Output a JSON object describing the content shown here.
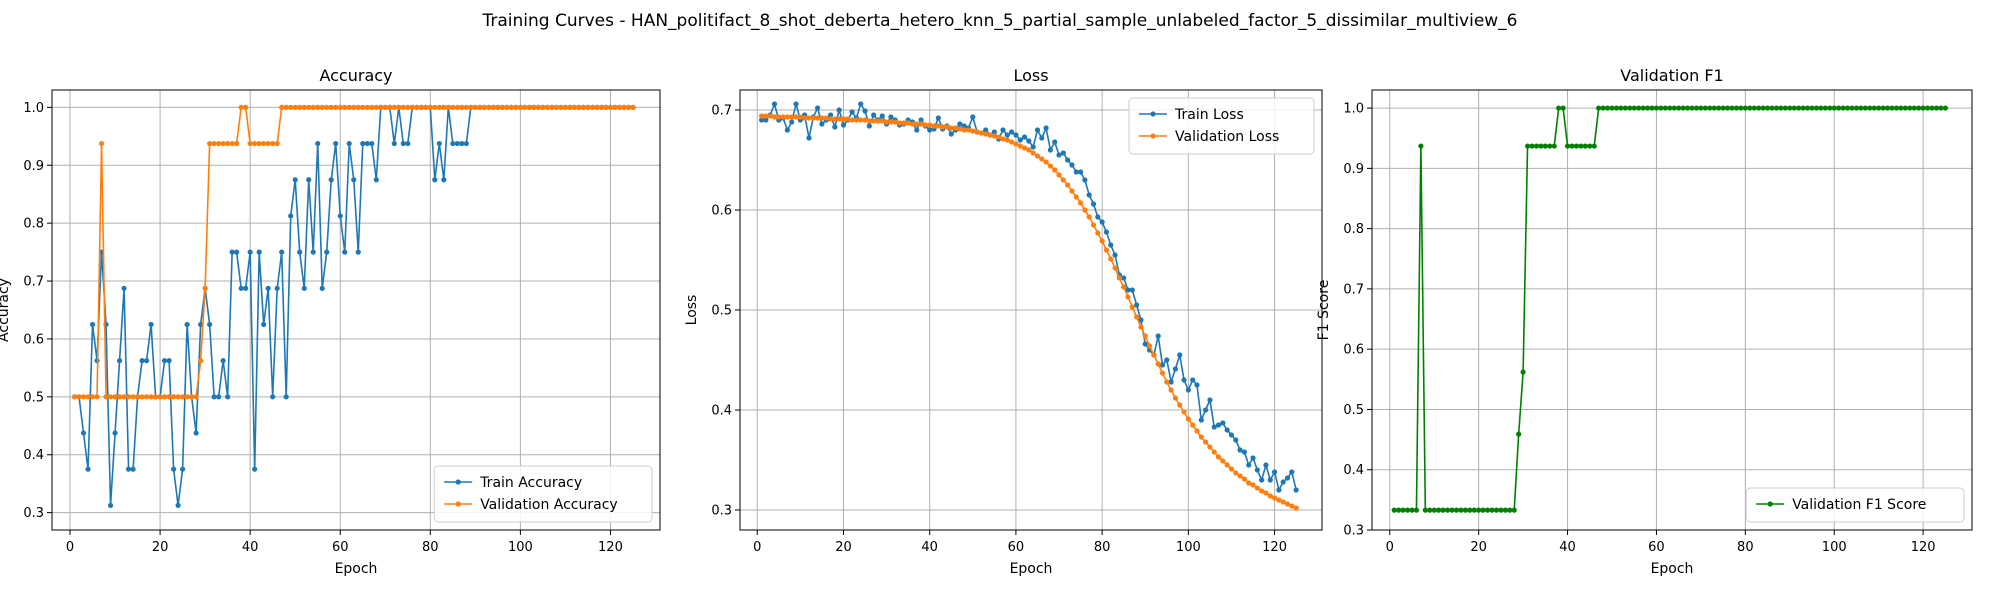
{
  "figure": {
    "suptitle": "Training Curves - HAN_politifact_8_shot_deberta_hetero_knn_5_partial_sample_unlabeled_factor_5_dissimilar_multiview_6"
  },
  "chart_data": [
    {
      "type": "line",
      "title": "Accuracy",
      "xlabel": "Epoch",
      "ylabel": "Accuracy",
      "xlim": [
        -4,
        131
      ],
      "ylim": [
        0.27,
        1.03
      ],
      "xticks": [
        0,
        20,
        40,
        60,
        80,
        100,
        120
      ],
      "yticks": [
        0.3,
        0.4,
        0.5,
        0.6,
        0.7,
        0.8,
        0.9,
        1.0
      ],
      "ytick_labels": [
        "0.3",
        "0.4",
        "0.5",
        "0.6",
        "0.7",
        "0.8",
        "0.9",
        "1.0"
      ],
      "grid": true,
      "legend_position": "lower-right",
      "series": [
        {
          "name": "Train Accuracy",
          "color": "#1f77b4",
          "values": [
            0.5,
            0.5,
            0.4375,
            0.375,
            0.625,
            0.5625,
            0.75,
            0.625,
            0.3125,
            0.4375,
            0.5625,
            0.6875,
            0.375,
            0.375,
            0.5,
            0.5625,
            0.5625,
            0.625,
            0.5,
            0.5,
            0.5625,
            0.5625,
            0.375,
            0.3125,
            0.375,
            0.625,
            0.5,
            0.4375,
            0.625,
            0.6875,
            0.625,
            0.5,
            0.5,
            0.5625,
            0.5,
            0.75,
            0.75,
            0.6875,
            0.6875,
            0.75,
            0.375,
            0.75,
            0.625,
            0.6875,
            0.5,
            0.6875,
            0.75,
            0.5,
            0.8125,
            0.875,
            0.75,
            0.6875,
            0.875,
            0.75,
            0.9375,
            0.6875,
            0.75,
            0.875,
            0.9375,
            0.8125,
            0.75,
            0.9375,
            0.875,
            0.75,
            0.9375,
            0.9375,
            0.9375,
            0.875,
            1.0,
            1.0,
            1.0,
            0.9375,
            1.0,
            0.9375,
            0.9375,
            1.0,
            1.0,
            1.0,
            1.0,
            1.0,
            0.875,
            0.9375,
            0.875,
            1.0,
            0.9375,
            0.9375,
            0.9375,
            0.9375,
            1.0,
            1.0,
            1.0,
            1.0,
            1.0,
            1.0,
            1.0,
            1.0,
            1.0,
            1.0,
            1.0,
            1.0,
            1.0,
            1.0,
            1.0,
            1.0,
            1.0,
            1.0,
            1.0,
            1.0,
            1.0,
            1.0,
            1.0,
            1.0,
            1.0,
            1.0,
            1.0,
            1.0,
            1.0,
            1.0,
            1.0,
            1.0,
            1.0,
            1.0,
            1.0,
            1.0,
            1.0
          ]
        },
        {
          "name": "Validation Accuracy",
          "color": "#ff7f0e",
          "values": [
            0.5,
            0.5,
            0.5,
            0.5,
            0.5,
            0.5,
            0.9375,
            0.5,
            0.5,
            0.5,
            0.5,
            0.5,
            0.5,
            0.5,
            0.5,
            0.5,
            0.5,
            0.5,
            0.5,
            0.5,
            0.5,
            0.5,
            0.5,
            0.5,
            0.5,
            0.5,
            0.5,
            0.5,
            0.5625,
            0.6875,
            0.9375,
            0.9375,
            0.9375,
            0.9375,
            0.9375,
            0.9375,
            0.9375,
            1.0,
            1.0,
            0.9375,
            0.9375,
            0.9375,
            0.9375,
            0.9375,
            0.9375,
            0.9375,
            1.0,
            1.0,
            1.0,
            1.0,
            1.0,
            1.0,
            1.0,
            1.0,
            1.0,
            1.0,
            1.0,
            1.0,
            1.0,
            1.0,
            1.0,
            1.0,
            1.0,
            1.0,
            1.0,
            1.0,
            1.0,
            1.0,
            1.0,
            1.0,
            1.0,
            1.0,
            1.0,
            1.0,
            1.0,
            1.0,
            1.0,
            1.0,
            1.0,
            1.0,
            1.0,
            1.0,
            1.0,
            1.0,
            1.0,
            1.0,
            1.0,
            1.0,
            1.0,
            1.0,
            1.0,
            1.0,
            1.0,
            1.0,
            1.0,
            1.0,
            1.0,
            1.0,
            1.0,
            1.0,
            1.0,
            1.0,
            1.0,
            1.0,
            1.0,
            1.0,
            1.0,
            1.0,
            1.0,
            1.0,
            1.0,
            1.0,
            1.0,
            1.0,
            1.0,
            1.0,
            1.0,
            1.0,
            1.0,
            1.0,
            1.0,
            1.0,
            1.0,
            1.0,
            1.0
          ]
        }
      ]
    },
    {
      "type": "line",
      "title": "Loss",
      "xlabel": "Epoch",
      "ylabel": "Loss",
      "xlim": [
        -4,
        131
      ],
      "ylim": [
        0.28,
        0.72
      ],
      "xticks": [
        0,
        20,
        40,
        60,
        80,
        100,
        120
      ],
      "yticks": [
        0.3,
        0.4,
        0.5,
        0.6,
        0.7
      ],
      "ytick_labels": [
        "0.3",
        "0.4",
        "0.5",
        "0.6",
        "0.7"
      ],
      "grid": true,
      "legend_position": "upper-right",
      "series": [
        {
          "name": "Train Loss",
          "color": "#1f77b4",
          "values": [
            0.69,
            0.69,
            0.695,
            0.706,
            0.69,
            0.692,
            0.68,
            0.688,
            0.706,
            0.69,
            0.695,
            0.672,
            0.693,
            0.702,
            0.686,
            0.69,
            0.695,
            0.683,
            0.7,
            0.685,
            0.69,
            0.698,
            0.692,
            0.706,
            0.699,
            0.684,
            0.695,
            0.69,
            0.694,
            0.686,
            0.693,
            0.69,
            0.685,
            0.686,
            0.69,
            0.688,
            0.68,
            0.69,
            0.684,
            0.68,
            0.681,
            0.692,
            0.681,
            0.684,
            0.676,
            0.68,
            0.686,
            0.684,
            0.682,
            0.693,
            0.678,
            0.677,
            0.68,
            0.675,
            0.678,
            0.671,
            0.68,
            0.675,
            0.678,
            0.675,
            0.67,
            0.673,
            0.669,
            0.663,
            0.68,
            0.672,
            0.682,
            0.66,
            0.668,
            0.655,
            0.657,
            0.65,
            0.645,
            0.638,
            0.638,
            0.63,
            0.615,
            0.606,
            0.593,
            0.588,
            0.578,
            0.565,
            0.555,
            0.535,
            0.532,
            0.52,
            0.52,
            0.505,
            0.49,
            0.466,
            0.46,
            0.455,
            0.474,
            0.445,
            0.45,
            0.428,
            0.441,
            0.455,
            0.43,
            0.42,
            0.43,
            0.425,
            0.39,
            0.4,
            0.41,
            0.383,
            0.385,
            0.387,
            0.38,
            0.375,
            0.37,
            0.36,
            0.358,
            0.345,
            0.352,
            0.34,
            0.33,
            0.345,
            0.33,
            0.338,
            0.32,
            0.328,
            0.332,
            0.338,
            0.32
          ]
        },
        {
          "name": "Validation Loss",
          "color": "#ff7f0e",
          "values": [
            0.694,
            0.694,
            0.694,
            0.693,
            0.693,
            0.693,
            0.693,
            0.693,
            0.693,
            0.693,
            0.692,
            0.692,
            0.692,
            0.692,
            0.692,
            0.692,
            0.691,
            0.691,
            0.691,
            0.691,
            0.691,
            0.69,
            0.69,
            0.69,
            0.69,
            0.689,
            0.689,
            0.689,
            0.689,
            0.688,
            0.688,
            0.688,
            0.687,
            0.687,
            0.687,
            0.686,
            0.686,
            0.686,
            0.685,
            0.685,
            0.684,
            0.684,
            0.683,
            0.683,
            0.682,
            0.682,
            0.681,
            0.68,
            0.68,
            0.679,
            0.678,
            0.677,
            0.676,
            0.675,
            0.674,
            0.673,
            0.671,
            0.67,
            0.668,
            0.666,
            0.664,
            0.662,
            0.66,
            0.657,
            0.654,
            0.651,
            0.648,
            0.644,
            0.64,
            0.635,
            0.63,
            0.625,
            0.619,
            0.613,
            0.607,
            0.6,
            0.593,
            0.585,
            0.577,
            0.569,
            0.56,
            0.551,
            0.542,
            0.532,
            0.523,
            0.513,
            0.503,
            0.493,
            0.483,
            0.474,
            0.464,
            0.455,
            0.446,
            0.437,
            0.428,
            0.42,
            0.412,
            0.405,
            0.398,
            0.391,
            0.385,
            0.379,
            0.373,
            0.368,
            0.363,
            0.358,
            0.353,
            0.349,
            0.345,
            0.341,
            0.337,
            0.334,
            0.331,
            0.327,
            0.325,
            0.322,
            0.319,
            0.317,
            0.314,
            0.312,
            0.31,
            0.308,
            0.306,
            0.304,
            0.302
          ]
        }
      ]
    },
    {
      "type": "line",
      "title": "Validation F1",
      "xlabel": "Epoch",
      "ylabel": "F1 Score",
      "xlim": [
        -4,
        131
      ],
      "ylim": [
        0.3,
        1.03
      ],
      "xticks": [
        0,
        20,
        40,
        60,
        80,
        100,
        120
      ],
      "yticks": [
        0.3,
        0.4,
        0.5,
        0.6,
        0.7,
        0.8,
        0.9,
        1.0
      ],
      "ytick_labels": [
        "0.3",
        "0.4",
        "0.5",
        "0.6",
        "0.7",
        "0.8",
        "0.9",
        "1.0"
      ],
      "grid": true,
      "legend_position": "lower-right",
      "series": [
        {
          "name": "Validation F1 Score",
          "color": "#008000",
          "values": [
            0.333,
            0.333,
            0.333,
            0.333,
            0.333,
            0.333,
            0.937,
            0.333,
            0.333,
            0.333,
            0.333,
            0.333,
            0.333,
            0.333,
            0.333,
            0.333,
            0.333,
            0.333,
            0.333,
            0.333,
            0.333,
            0.333,
            0.333,
            0.333,
            0.333,
            0.333,
            0.333,
            0.333,
            0.459,
            0.562,
            0.937,
            0.937,
            0.937,
            0.937,
            0.937,
            0.937,
            0.937,
            1.0,
            1.0,
            0.937,
            0.937,
            0.937,
            0.937,
            0.937,
            0.937,
            0.937,
            1.0,
            1.0,
            1.0,
            1.0,
            1.0,
            1.0,
            1.0,
            1.0,
            1.0,
            1.0,
            1.0,
            1.0,
            1.0,
            1.0,
            1.0,
            1.0,
            1.0,
            1.0,
            1.0,
            1.0,
            1.0,
            1.0,
            1.0,
            1.0,
            1.0,
            1.0,
            1.0,
            1.0,
            1.0,
            1.0,
            1.0,
            1.0,
            1.0,
            1.0,
            1.0,
            1.0,
            1.0,
            1.0,
            1.0,
            1.0,
            1.0,
            1.0,
            1.0,
            1.0,
            1.0,
            1.0,
            1.0,
            1.0,
            1.0,
            1.0,
            1.0,
            1.0,
            1.0,
            1.0,
            1.0,
            1.0,
            1.0,
            1.0,
            1.0,
            1.0,
            1.0,
            1.0,
            1.0,
            1.0,
            1.0,
            1.0,
            1.0,
            1.0,
            1.0,
            1.0,
            1.0,
            1.0,
            1.0,
            1.0,
            1.0,
            1.0,
            1.0,
            1.0,
            1.0
          ]
        }
      ]
    }
  ]
}
